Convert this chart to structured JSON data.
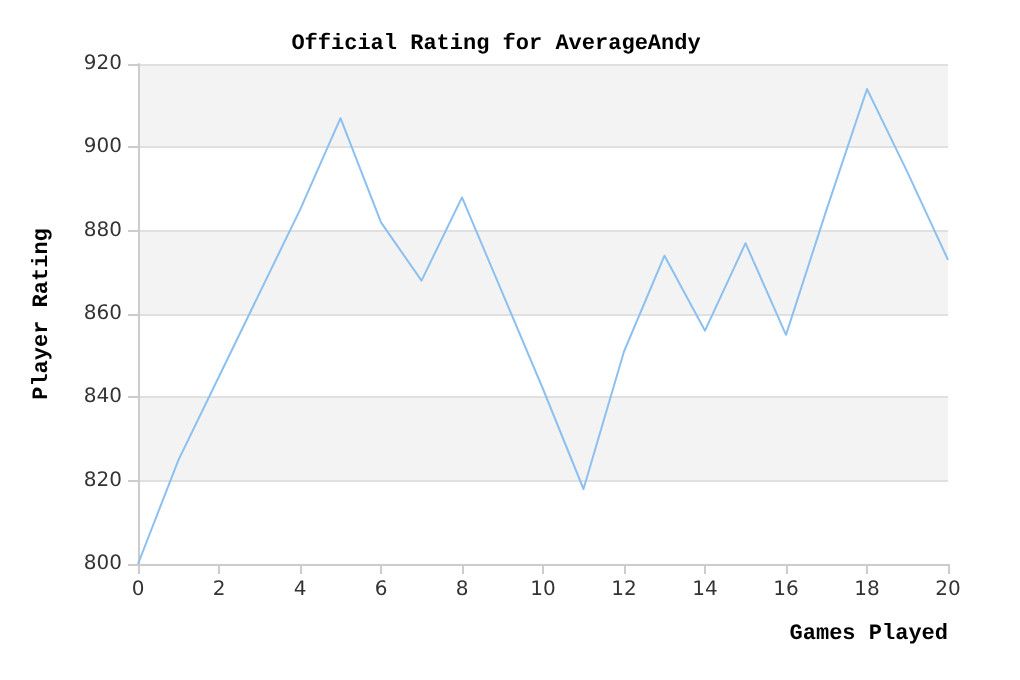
{
  "chart_data": {
    "type": "line",
    "title": "Official Rating for AverageAndy",
    "xlabel": "Games Played",
    "ylabel": "Player Rating",
    "x": [
      0,
      1,
      2,
      3,
      4,
      5,
      6,
      7,
      8,
      9,
      10,
      11,
      12,
      13,
      14,
      15,
      16,
      17,
      18,
      19,
      20
    ],
    "series": [
      {
        "color": "#8cc0f0",
        "values": [
          800,
          825,
          845,
          865,
          885,
          907,
          882,
          868,
          888,
          865,
          842,
          818,
          851,
          874,
          856,
          877,
          855,
          885,
          914,
          894,
          873
        ]
      }
    ],
    "xlim": [
      0,
      20
    ],
    "xticks": [
      0,
      2,
      4,
      6,
      8,
      10,
      12,
      14,
      16,
      18,
      20
    ],
    "ylim": [
      800,
      920
    ],
    "yticks": [
      800,
      820,
      840,
      860,
      880,
      900,
      920
    ],
    "grid": "y",
    "marker": "none",
    "line_style": "solid"
  }
}
